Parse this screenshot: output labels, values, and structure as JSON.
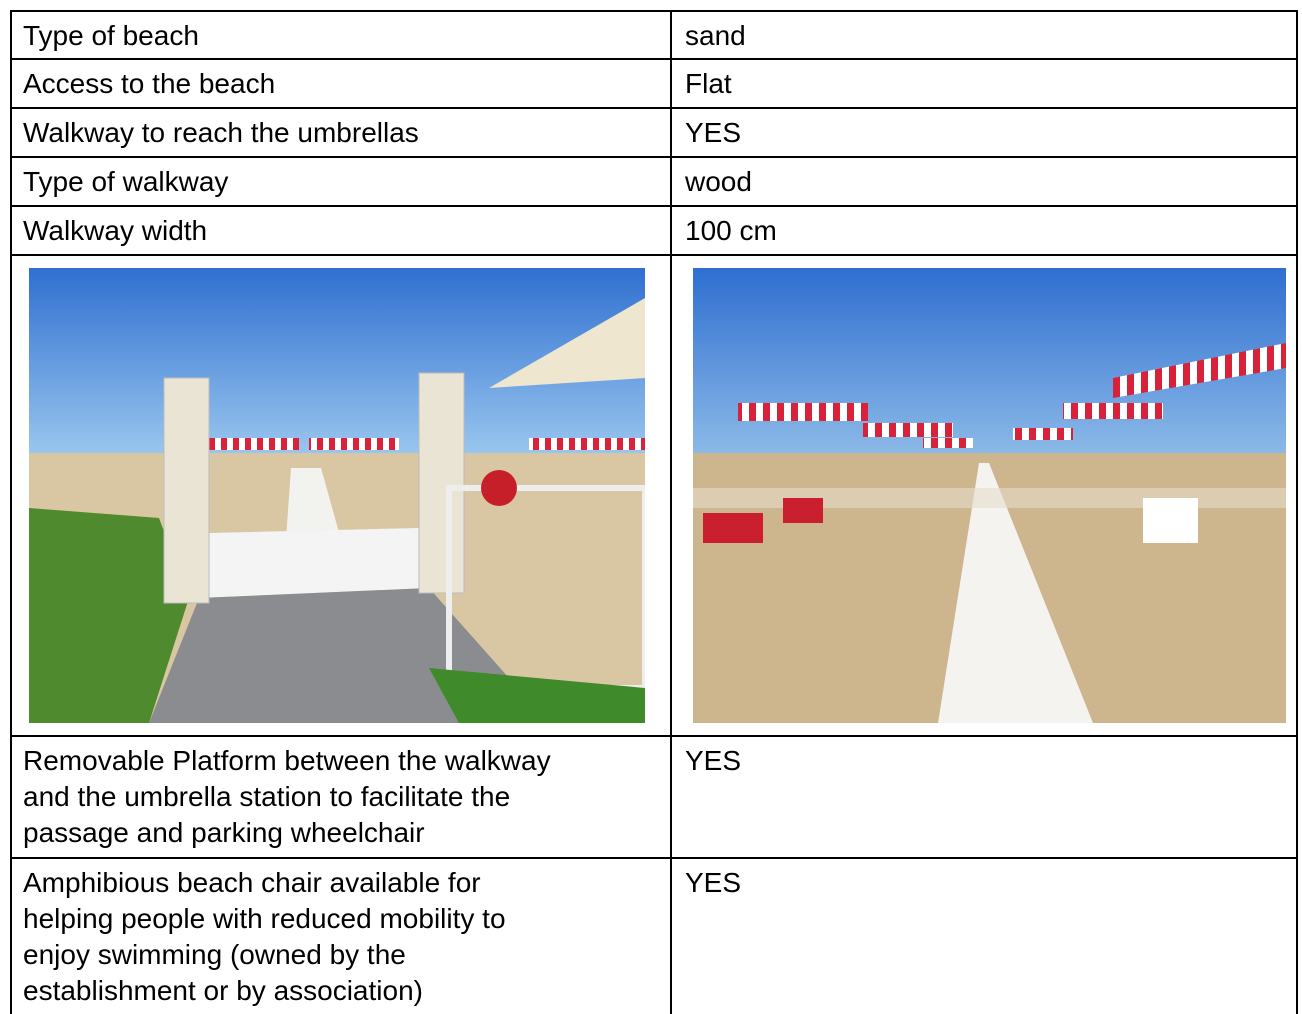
{
  "table": {
    "rows": [
      {
        "label": [
          "Type of beach"
        ],
        "value": "sand"
      },
      {
        "label": [
          "Access to the beach"
        ],
        "value": "Flat"
      },
      {
        "label": [
          "Walkway to reach the umbrellas"
        ],
        "value": "YES"
      },
      {
        "label": [
          "Type of walkway"
        ],
        "value": "wood"
      },
      {
        "label": [
          "Walkway width"
        ],
        "value": "100 cm"
      },
      {
        "label": [
          "Removable Platform between the walkway",
          "and the umbrella station to facilitate the",
          "passage and parking wheelchair"
        ],
        "value": "YES"
      },
      {
        "label": [
          "Amphibious beach chair available for",
          "helping people with reduced mobility to",
          "enjoy swimming (owned by the",
          "establishment or by association)"
        ],
        "value": "YES"
      }
    ]
  }
}
